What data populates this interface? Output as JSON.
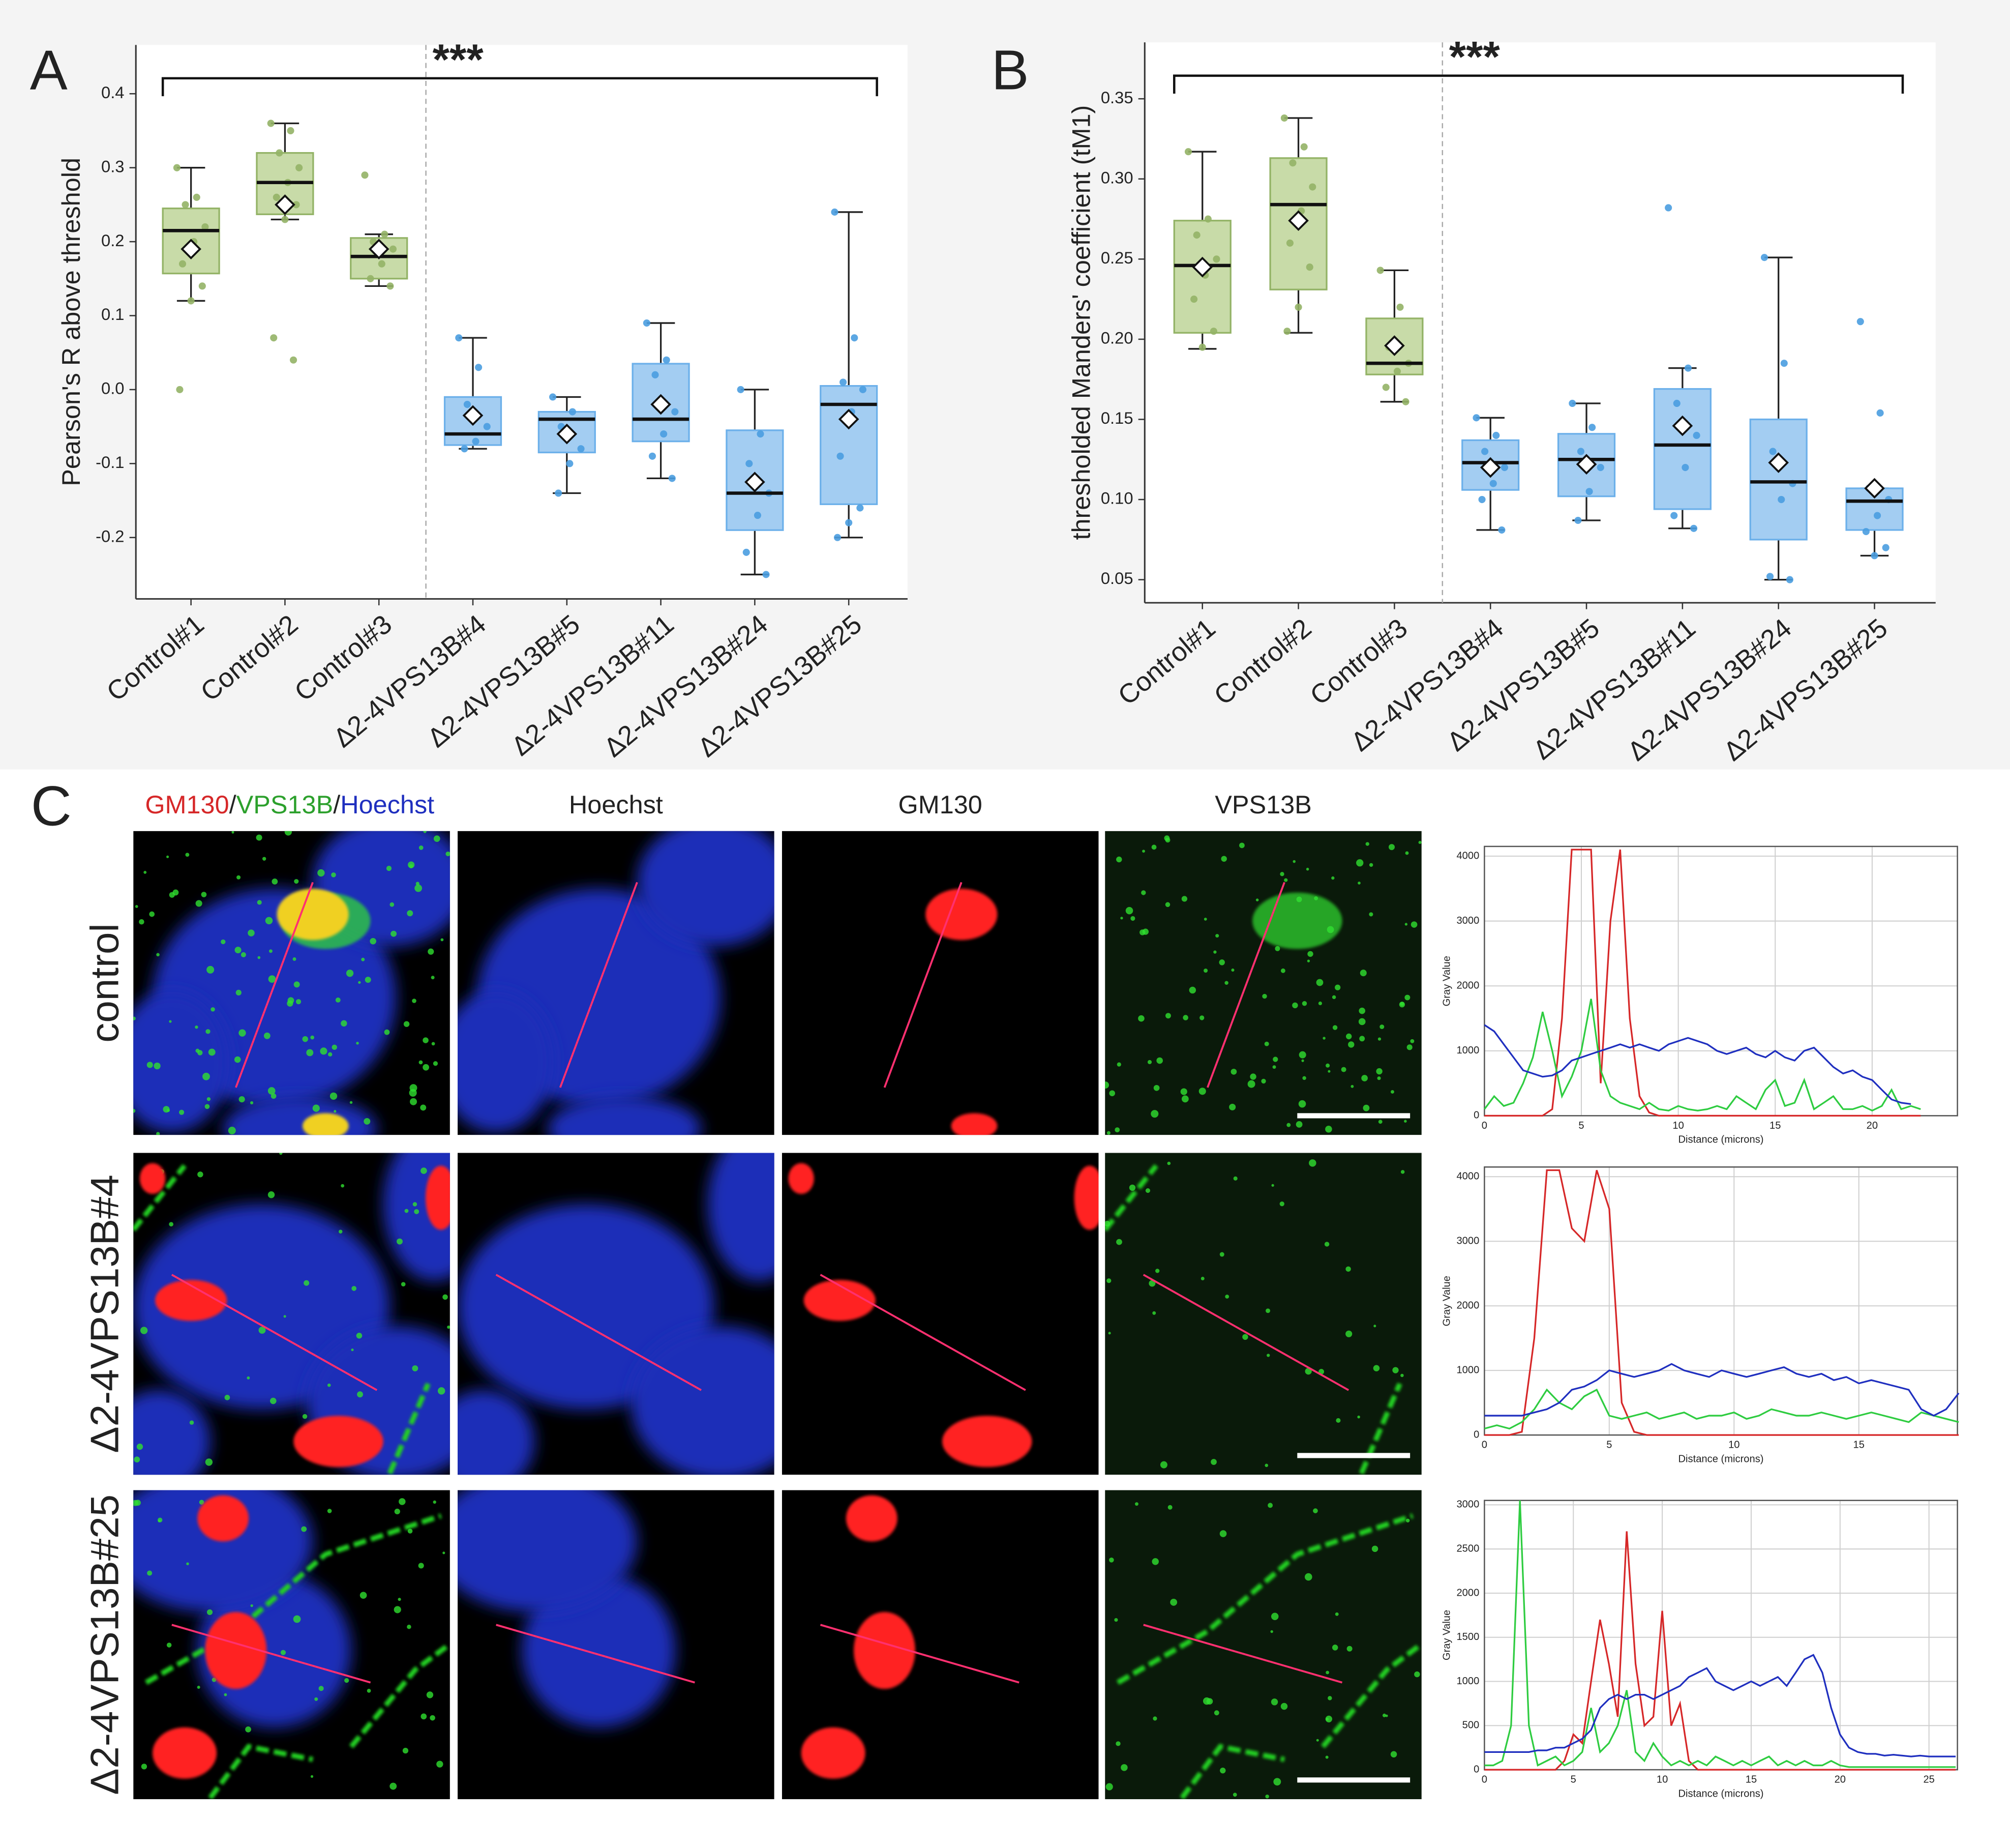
{
  "chart_data": [
    {
      "type": "box",
      "panel_label": "A",
      "ylabel": "Pearson's R above threshold",
      "annotation": "***",
      "categories": [
        "Control#1",
        "Control#2",
        "Control#3",
        "Δ2-4VPS13B#4",
        "Δ2-4VPS13B#5",
        "Δ2-4VPS13B#11",
        "Δ2-4VPS13B#24",
        "Δ2-4VPS13B#25"
      ],
      "fill_colors": [
        "#c8dba8",
        "#c8dba8",
        "#c8dba8",
        "#a3cdf2",
        "#a3cdf2",
        "#a3cdf2",
        "#a3cdf2",
        "#a3cdf2"
      ],
      "edge_colors": [
        "#93b366",
        "#93b366",
        "#93b366",
        "#6cb0ea",
        "#6cb0ea",
        "#6cb0ea",
        "#6cb0ea",
        "#6cb0ea"
      ],
      "point_colors": [
        "#93b366",
        "#93b366",
        "#93b366",
        "#4a9de0",
        "#4a9de0",
        "#4a9de0",
        "#4a9de0",
        "#4a9de0"
      ],
      "ylim": [
        -0.283,
        0.466
      ],
      "yticks": [
        -0.2,
        -0.1,
        {
          "value": 0,
          "label": "0.0"
        },
        0.1,
        0.2,
        0.3,
        0.4
      ],
      "boxes": [
        {
          "whislo": 0.12,
          "q1": 0.157,
          "med": 0.215,
          "q3": 0.245,
          "whishi": 0.3,
          "mean": 0.19,
          "points": [
            0.3,
            0.26,
            0.25,
            0.22,
            0.2,
            0.17,
            0.14,
            0.12,
            0.0
          ]
        },
        {
          "whislo": 0.23,
          "q1": 0.237,
          "med": 0.28,
          "q3": 0.32,
          "whishi": 0.36,
          "mean": 0.25,
          "points": [
            0.36,
            0.35,
            0.32,
            0.3,
            0.28,
            0.26,
            0.25,
            0.23,
            0.07,
            0.04
          ]
        },
        {
          "whislo": 0.14,
          "q1": 0.15,
          "med": 0.18,
          "q3": 0.205,
          "whishi": 0.21,
          "mean": 0.19,
          "points": [
            0.29,
            0.21,
            0.2,
            0.19,
            0.17,
            0.15,
            0.14
          ]
        },
        {
          "whislo": -0.08,
          "q1": -0.075,
          "med": -0.06,
          "q3": -0.01,
          "whishi": 0.07,
          "mean": -0.035,
          "points": [
            0.07,
            0.03,
            -0.02,
            -0.05,
            -0.07,
            -0.08
          ]
        },
        {
          "whislo": -0.14,
          "q1": -0.085,
          "med": -0.04,
          "q3": -0.03,
          "whishi": -0.01,
          "mean": -0.06,
          "points": [
            -0.01,
            -0.03,
            -0.05,
            -0.08,
            -0.1,
            -0.14
          ]
        },
        {
          "whislo": -0.12,
          "q1": -0.07,
          "med": -0.04,
          "q3": 0.035,
          "whishi": 0.09,
          "mean": -0.02,
          "points": [
            0.09,
            0.04,
            0.02,
            -0.03,
            -0.06,
            -0.09,
            -0.12
          ]
        },
        {
          "whislo": -0.25,
          "q1": -0.19,
          "med": -0.14,
          "q3": -0.055,
          "whishi": 0.0,
          "mean": -0.125,
          "points": [
            0.0,
            -0.06,
            -0.1,
            -0.14,
            -0.17,
            -0.22,
            -0.25
          ]
        },
        {
          "whislo": -0.2,
          "q1": -0.155,
          "med": -0.02,
          "q3": 0.005,
          "whishi": 0.24,
          "mean": -0.04,
          "points": [
            0.24,
            0.07,
            0.01,
            0.0,
            -0.03,
            -0.09,
            -0.16,
            -0.18,
            -0.2
          ]
        }
      ]
    },
    {
      "type": "box",
      "panel_label": "B",
      "ylabel": "thresholded Manders' coefficient (tM1)",
      "annotation": "***",
      "categories": [
        "Control#1",
        "Control#2",
        "Control#3",
        "Δ2-4VPS13B#4",
        "Δ2-4VPS13B#5",
        "Δ2-4VPS13B#11",
        "Δ2-4VPS13B#24",
        "Δ2-4VPS13B#25"
      ],
      "fill_colors": [
        "#c8dba8",
        "#c8dba8",
        "#c8dba8",
        "#a3cdf2",
        "#a3cdf2",
        "#a3cdf2",
        "#a3cdf2",
        "#a3cdf2"
      ],
      "edge_colors": [
        "#93b366",
        "#93b366",
        "#93b366",
        "#6cb0ea",
        "#6cb0ea",
        "#6cb0ea",
        "#6cb0ea",
        "#6cb0ea"
      ],
      "point_colors": [
        "#93b366",
        "#93b366",
        "#93b366",
        "#4a9de0",
        "#4a9de0",
        "#4a9de0",
        "#4a9de0",
        "#4a9de0"
      ],
      "ylim": [
        0.0356,
        0.3852
      ],
      "yticks": [
        0.05,
        {
          "value": 0.1,
          "label": "0.10"
        },
        0.15,
        {
          "value": 0.2,
          "label": "0.20"
        },
        0.25,
        {
          "value": 0.3,
          "label": "0.30"
        },
        0.35
      ],
      "boxes": [
        {
          "whislo": 0.194,
          "q1": 0.204,
          "med": 0.246,
          "q3": 0.274,
          "whishi": 0.317,
          "mean": 0.245,
          "points": [
            0.317,
            0.275,
            0.265,
            0.25,
            0.24,
            0.225,
            0.205,
            0.195
          ]
        },
        {
          "whislo": 0.204,
          "q1": 0.231,
          "med": 0.284,
          "q3": 0.313,
          "whishi": 0.338,
          "mean": 0.274,
          "points": [
            0.338,
            0.32,
            0.31,
            0.295,
            0.28,
            0.26,
            0.245,
            0.22,
            0.205
          ]
        },
        {
          "whislo": 0.161,
          "q1": 0.178,
          "med": 0.185,
          "q3": 0.213,
          "whishi": 0.243,
          "mean": 0.196,
          "points": [
            0.243,
            0.22,
            0.195,
            0.185,
            0.18,
            0.17,
            0.161
          ]
        },
        {
          "whislo": 0.081,
          "q1": 0.106,
          "med": 0.123,
          "q3": 0.137,
          "whishi": 0.151,
          "mean": 0.12,
          "points": [
            0.151,
            0.14,
            0.13,
            0.12,
            0.11,
            0.1,
            0.081
          ]
        },
        {
          "whislo": 0.087,
          "q1": 0.102,
          "med": 0.125,
          "q3": 0.141,
          "whishi": 0.16,
          "mean": 0.122,
          "points": [
            0.16,
            0.145,
            0.13,
            0.12,
            0.105,
            0.087
          ]
        },
        {
          "whislo": 0.082,
          "q1": 0.094,
          "med": 0.134,
          "q3": 0.169,
          "whishi": 0.182,
          "mean": 0.146,
          "points": [
            0.282,
            0.182,
            0.16,
            0.14,
            0.12,
            0.09,
            0.082
          ]
        },
        {
          "whislo": 0.05,
          "q1": 0.075,
          "med": 0.111,
          "q3": 0.15,
          "whishi": 0.251,
          "mean": 0.123,
          "points": [
            0.251,
            0.185,
            0.13,
            0.11,
            0.1,
            0.052,
            0.05
          ]
        },
        {
          "whislo": 0.065,
          "q1": 0.081,
          "med": 0.099,
          "q3": 0.107,
          "whishi": 0.107,
          "mean": 0.107,
          "points": [
            0.211,
            0.154,
            0.107,
            0.1,
            0.09,
            0.08,
            0.07,
            0.065
          ]
        }
      ]
    },
    {
      "type": "line",
      "xlabel": "Distance (microns)",
      "ylabel": "Gray Value",
      "grid": true,
      "xlim": [
        0,
        24.4
      ],
      "ylim": [
        0,
        4150
      ],
      "xticks": [
        0,
        5,
        10,
        15,
        20
      ],
      "yticks": [
        0,
        1000,
        2000,
        3000,
        4000
      ],
      "x": [
        0,
        0.5,
        1,
        1.5,
        2,
        2.5,
        3,
        3.5,
        4,
        4.5,
        5,
        5.5,
        6,
        6.5,
        7,
        7.5,
        8,
        8.5,
        9,
        9.5,
        10,
        10.5,
        11,
        11.5,
        12,
        12.5,
        13,
        13.5,
        14,
        14.5,
        15,
        15.5,
        16,
        16.5,
        17,
        17.5,
        18,
        18.5,
        19,
        19.5,
        20,
        20.5,
        21,
        21.5,
        22,
        22.5
      ],
      "series": [
        {
          "color": "#d62728",
          "values": [
            0,
            0,
            0,
            0,
            0,
            0,
            0,
            100,
            1500,
            4100,
            4100,
            4100,
            500,
            3000,
            4100,
            1500,
            300,
            50,
            0,
            0,
            0,
            0,
            0,
            0,
            0,
            0,
            0,
            0,
            0,
            0,
            0,
            0,
            0,
            0,
            0,
            0,
            0,
            0,
            0,
            0,
            0,
            0,
            0,
            0,
            0,
            0
          ]
        },
        {
          "color": "#2ecc40",
          "values": [
            100,
            300,
            150,
            200,
            500,
            900,
            1600,
            1000,
            300,
            600,
            1000,
            1800,
            700,
            300,
            200,
            150,
            100,
            200,
            100,
            80,
            150,
            100,
            80,
            100,
            150,
            100,
            300,
            200,
            100,
            400,
            550,
            150,
            200,
            550,
            100,
            200,
            300,
            100,
            100,
            150,
            80,
            150,
            400,
            100,
            150,
            100
          ]
        },
        {
          "color": "#1f2fbf",
          "values": [
            1400,
            1300,
            1100,
            900,
            700,
            650,
            600,
            620,
            700,
            850,
            900,
            950,
            1000,
            1050,
            1100,
            1050,
            1100,
            1050,
            1000,
            1100,
            1150,
            1200,
            1150,
            1100,
            1000,
            950,
            1000,
            1050,
            950,
            900,
            1000,
            900,
            850,
            1000,
            1050,
            900,
            750,
            650,
            700,
            600,
            550,
            400,
            250,
            200,
            180,
            null
          ]
        }
      ]
    },
    {
      "type": "line",
      "xlabel": "Distance (microns)",
      "ylabel": "Gray Value",
      "grid": true,
      "xlim": [
        0,
        18.95
      ],
      "ylim": [
        0,
        4150
      ],
      "xticks": [
        0,
        5,
        10,
        15
      ],
      "yticks": [
        0,
        1000,
        2000,
        3000,
        4000
      ],
      "x": [
        0,
        0.5,
        1,
        1.5,
        2,
        2.5,
        3,
        3.5,
        4,
        4.5,
        5,
        5.5,
        6,
        6.5,
        7,
        7.5,
        8,
        8.5,
        9,
        9.5,
        10,
        10.5,
        11,
        11.5,
        12,
        12.5,
        13,
        13.5,
        14,
        14.5,
        15,
        15.5,
        16,
        16.5,
        17,
        17.5,
        18,
        18.5,
        19
      ],
      "series": [
        {
          "color": "#d62728",
          "values": [
            0,
            0,
            0,
            50,
            1500,
            4100,
            4100,
            3200,
            3000,
            4100,
            3500,
            500,
            50,
            0,
            0,
            0,
            0,
            0,
            0,
            0,
            0,
            0,
            0,
            0,
            0,
            0,
            0,
            0,
            0,
            0,
            0,
            0,
            0,
            0,
            0,
            0,
            0,
            0,
            0
          ]
        },
        {
          "color": "#2ecc40",
          "values": [
            100,
            150,
            100,
            200,
            400,
            700,
            500,
            400,
            600,
            700,
            300,
            250,
            300,
            350,
            250,
            300,
            350,
            250,
            300,
            300,
            350,
            250,
            300,
            400,
            350,
            300,
            300,
            350,
            300,
            250,
            300,
            350,
            300,
            250,
            200,
            350,
            300,
            250,
            200
          ]
        },
        {
          "color": "#1f2fbf",
          "values": [
            300,
            300,
            300,
            300,
            350,
            400,
            500,
            700,
            750,
            850,
            1000,
            950,
            900,
            950,
            1000,
            1100,
            1000,
            950,
            900,
            1000,
            950,
            900,
            950,
            1000,
            1050,
            950,
            900,
            950,
            850,
            900,
            800,
            850,
            800,
            750,
            700,
            400,
            300,
            400,
            650
          ]
        }
      ]
    },
    {
      "type": "line",
      "xlabel": "Distance (microns)",
      "ylabel": "Gray Value",
      "grid": true,
      "xlim": [
        0,
        26.6
      ],
      "ylim": [
        0,
        3050
      ],
      "xticks": [
        0,
        5,
        10,
        15,
        20,
        25
      ],
      "yticks": [
        0,
        500,
        1000,
        1500,
        2000,
        2500,
        3000
      ],
      "x": [
        0,
        0.5,
        1,
        1.5,
        2,
        2.5,
        3,
        3.5,
        4,
        4.5,
        5,
        5.5,
        6,
        6.5,
        7,
        7.5,
        8,
        8.5,
        9,
        9.5,
        10,
        10.5,
        11,
        11.5,
        12,
        12.5,
        13,
        13.5,
        14,
        14.5,
        15,
        15.5,
        16,
        16.5,
        17,
        17.5,
        18,
        18.5,
        19,
        19.5,
        20,
        20.5,
        21,
        21.5,
        22,
        22.5,
        23,
        23.5,
        24,
        24.5,
        25,
        25.5,
        26,
        26.5
      ],
      "series": [
        {
          "color": "#d62728",
          "values": [
            0,
            0,
            0,
            0,
            0,
            0,
            0,
            0,
            0,
            100,
            400,
            300,
            1000,
            1700,
            1200,
            600,
            2700,
            1200,
            500,
            600,
            1800,
            500,
            750,
            100,
            0,
            0,
            0,
            0,
            0,
            0,
            0,
            0,
            0,
            0,
            0,
            0,
            0,
            0,
            0,
            0,
            0,
            0,
            0,
            0,
            0,
            0,
            0,
            0,
            0,
            0,
            0,
            0,
            0,
            0
          ]
        },
        {
          "color": "#2ecc40",
          "values": [
            50,
            50,
            100,
            500,
            3050,
            500,
            50,
            100,
            150,
            50,
            100,
            200,
            700,
            200,
            300,
            500,
            900,
            200,
            100,
            300,
            150,
            50,
            100,
            50,
            100,
            50,
            150,
            100,
            50,
            100,
            50,
            100,
            150,
            50,
            100,
            50,
            100,
            50,
            50,
            100,
            50,
            30,
            30,
            30,
            30,
            30,
            30,
            30,
            30,
            30,
            30,
            30,
            30,
            30
          ]
        },
        {
          "color": "#1f2fbf",
          "values": [
            200,
            200,
            200,
            200,
            200,
            200,
            220,
            220,
            250,
            250,
            300,
            350,
            450,
            700,
            800,
            850,
            800,
            850,
            850,
            800,
            850,
            900,
            950,
            1050,
            1100,
            1150,
            1000,
            950,
            900,
            950,
            1000,
            950,
            1000,
            1050,
            950,
            1100,
            1250,
            1300,
            1100,
            700,
            400,
            250,
            200,
            180,
            180,
            160,
            170,
            160,
            150,
            160,
            150,
            150,
            150,
            150
          ]
        }
      ]
    }
  ],
  "panel_c": {
    "label": "C",
    "header_parts": [
      {
        "text": "GM130",
        "color": "#d62728"
      },
      {
        "text": "/",
        "color": "#222222"
      },
      {
        "text": "VPS13B",
        "color": "#2ca02c"
      },
      {
        "text": "/",
        "color": "#222222"
      },
      {
        "text": "Hoechst",
        "color": "#1f2fbf"
      }
    ],
    "column_headers": [
      {
        "text": "Hoechst",
        "color": "#1f2fbf"
      },
      {
        "text": "GM130",
        "color": "#d62728"
      },
      {
        "text": "VPS13B",
        "color": "#2ca02c"
      }
    ],
    "row_labels": [
      "control",
      "Δ2-4VPS13B#4",
      "Δ2-4VPS13B#25"
    ]
  }
}
